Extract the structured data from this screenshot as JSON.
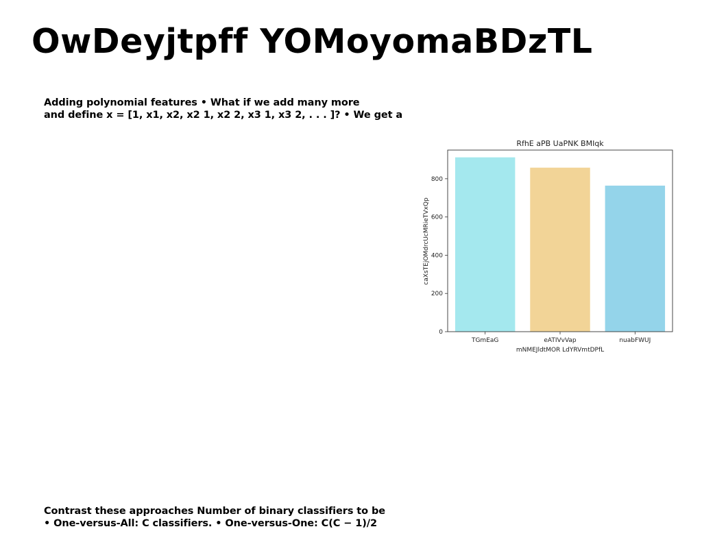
{
  "slide": {
    "title": "OwDeyjtpff YOMoyomaBDzTL",
    "top_text": {
      "line1": "Adding polynomial features • What if we add many more",
      "line2": "and define x = [1, x1, x2, x2 1, x2 2, x3 1, x3 2, . . . ]? • We get a"
    },
    "bottom_text": {
      "line1": "Contrast these approaches Number of binary classifiers to be",
      "line2": "• One-versus-All: C classifiers. • One-versus-One: C(C − 1)/2"
    }
  },
  "chart_data": {
    "type": "bar",
    "title": "RfhE aPB UaPNK BMIqk",
    "xlabel": "mNMEJldtMOR LdYRVmtDPfL",
    "ylabel": "caXsTEjOMdrcUcMRieTVxQp",
    "categories": [
      "TGmEaG",
      "eATIVvVap",
      "nuabFWUJ"
    ],
    "values": [
      912,
      858,
      764
    ],
    "colors": [
      "#a4e8ee",
      "#f2d497",
      "#94d4ea"
    ],
    "ylim": [
      0,
      950
    ],
    "yticks": [
      0,
      200,
      400,
      600,
      800
    ],
    "grid": false
  }
}
